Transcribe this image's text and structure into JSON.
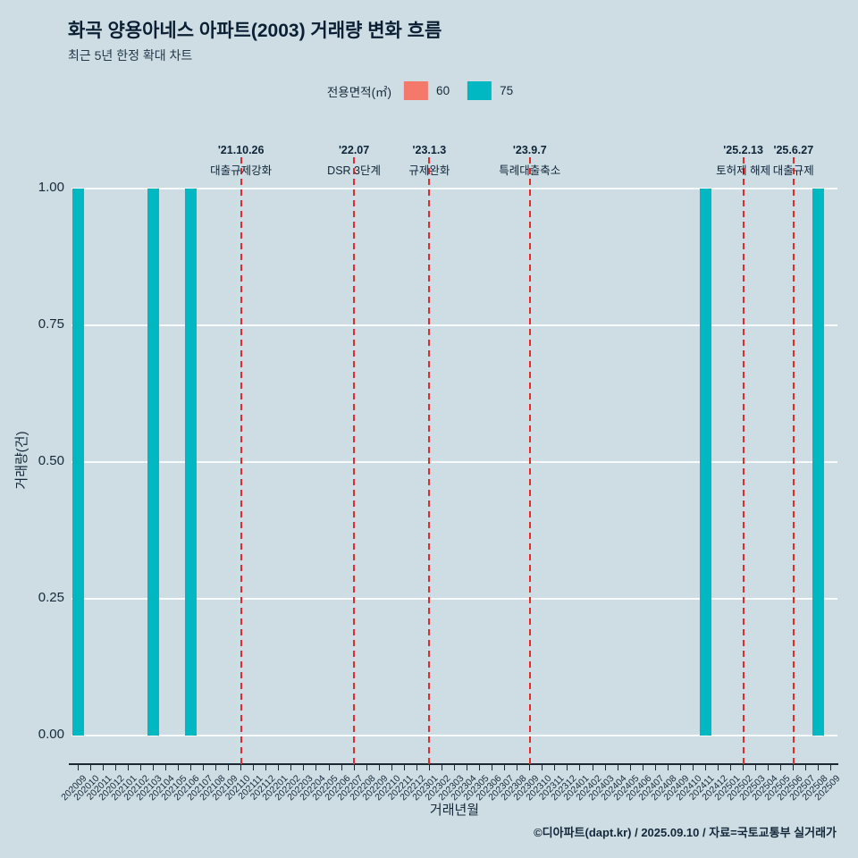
{
  "header": {
    "title": "화곡 양용아네스 아파트(2003) 거래량 변화 흐름",
    "subtitle": "최근 5년 한정 확대 차트"
  },
  "legend": {
    "label": "전용면적(㎡)",
    "items": [
      {
        "label": "60",
        "color": "#f4796b"
      },
      {
        "label": "75",
        "color": "#00b8c2"
      }
    ]
  },
  "chart_data": {
    "type": "bar",
    "title": "화곡 양용아네스 아파트(2003) 거래량 변화 흐름",
    "subtitle": "최근 5년 한정 확대 차트",
    "xlabel": "거래년월",
    "ylabel": "거래량(건)",
    "ylim": [
      0,
      1
    ],
    "grid": true,
    "legend_position": "top-center",
    "yticks": [
      0,
      0.25,
      0.5,
      0.75,
      1
    ],
    "ytick_labels": [
      "0.00",
      "0.25",
      "0.50",
      "0.75",
      "1.00"
    ],
    "categories": [
      "202009",
      "202010",
      "202011",
      "202012",
      "202101",
      "202102",
      "202103",
      "202104",
      "202105",
      "202106",
      "202107",
      "202108",
      "202109",
      "202110",
      "202111",
      "202112",
      "202201",
      "202202",
      "202203",
      "202204",
      "202205",
      "202206",
      "202207",
      "202208",
      "202209",
      "202210",
      "202211",
      "202212",
      "202301",
      "202302",
      "202303",
      "202304",
      "202305",
      "202306",
      "202307",
      "202308",
      "202309",
      "202310",
      "202311",
      "202312",
      "202401",
      "202402",
      "202403",
      "202404",
      "202405",
      "202406",
      "202407",
      "202408",
      "202409",
      "202410",
      "202411",
      "202412",
      "202501",
      "202502",
      "202503",
      "202504",
      "202505",
      "202506",
      "202507",
      "202508",
      "202509"
    ],
    "series": [
      {
        "name": "60",
        "color": "#f4796b",
        "values": [
          0,
          0,
          0,
          0,
          0,
          0,
          0,
          0,
          0,
          0,
          0,
          0,
          0,
          0,
          0,
          0,
          0,
          0,
          0,
          0,
          0,
          0,
          0,
          0,
          0,
          0,
          0,
          0,
          0,
          0,
          0,
          0,
          0,
          0,
          0,
          0,
          0,
          0,
          0,
          0,
          0,
          0,
          0,
          0,
          0,
          0,
          0,
          0,
          0,
          0,
          0,
          0,
          0,
          0,
          0,
          0,
          0,
          0,
          0,
          0,
          0
        ]
      },
      {
        "name": "75",
        "color": "#00b8c2",
        "values": [
          1,
          0,
          0,
          0,
          0,
          0,
          1,
          0,
          0,
          1,
          0,
          0,
          0,
          0,
          0,
          0,
          0,
          0,
          0,
          0,
          0,
          0,
          0,
          0,
          0,
          0,
          0,
          0,
          0,
          0,
          0,
          0,
          0,
          0,
          0,
          0,
          0,
          0,
          0,
          0,
          0,
          0,
          0,
          0,
          0,
          0,
          0,
          0,
          0,
          0,
          1,
          0,
          0,
          0,
          0,
          0,
          0,
          0,
          0,
          1,
          0
        ]
      }
    ],
    "events": [
      {
        "month": "202110",
        "date": "'21.10.26",
        "label": "대출규제강화"
      },
      {
        "month": "202207",
        "date": "'22.07",
        "label": "DSR 3단계"
      },
      {
        "month": "202301",
        "date": "'23.1.3",
        "label": "규제완화"
      },
      {
        "month": "202309",
        "date": "'23.9.7",
        "label": "특례대출축소"
      },
      {
        "month": "202502",
        "date": "'25.2.13",
        "label": "토허제 해제"
      },
      {
        "month": "202506",
        "date": "'25.6.27",
        "label": "대출규제"
      }
    ]
  },
  "footer": {
    "credit": "©디아파트(dapt.kr) / 2025.09.10 / 자료=국토교통부 실거래가"
  },
  "colors": {
    "background": "#cedde3",
    "bar_teal": "#00b8c2",
    "bar_salmon": "#f4796b",
    "event_line": "#e12c2c",
    "gridline": "#f7fbfb",
    "text": "#0d2438"
  }
}
